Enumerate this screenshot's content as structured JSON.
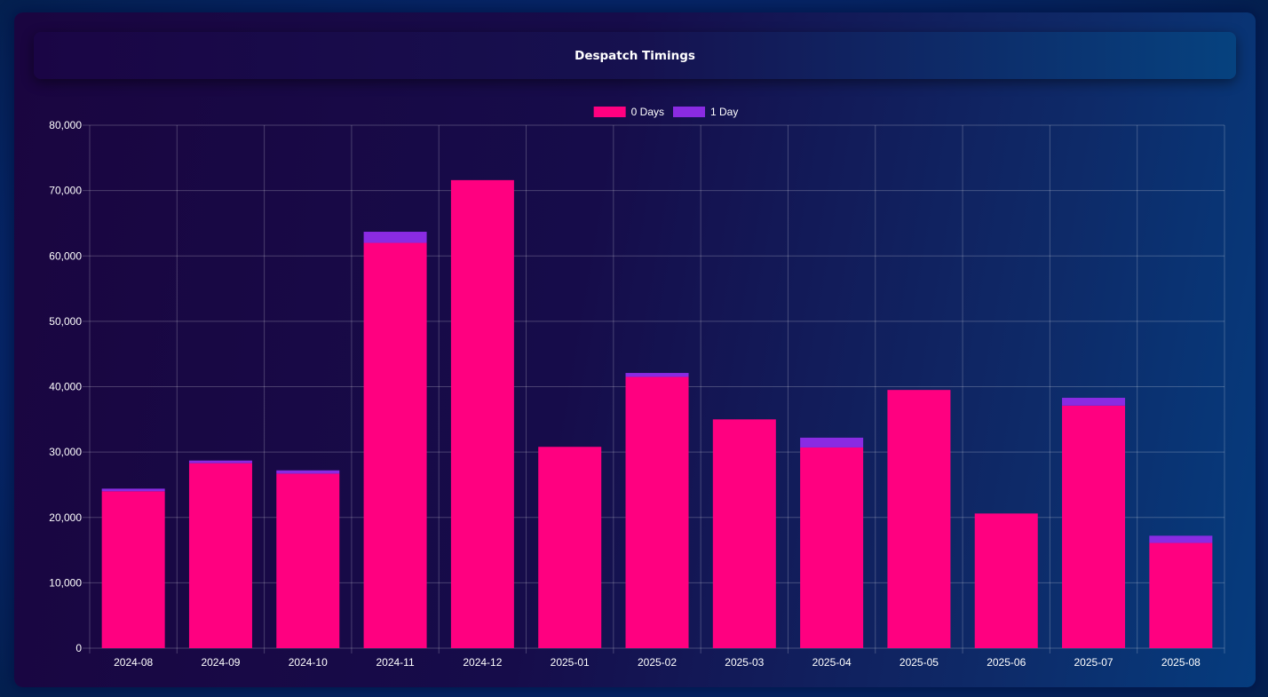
{
  "header": {
    "title": "Despatch Timings"
  },
  "colors": {
    "series_0": "#ff0080",
    "series_1": "#8a2be2",
    "grid": "rgba(255,255,255,0.22)",
    "text": "#ffffff"
  },
  "chart_data": {
    "type": "bar",
    "stacked": true,
    "categories": [
      "2024-08",
      "2024-09",
      "2024-10",
      "2024-11",
      "2024-12",
      "2025-01",
      "2025-02",
      "2025-03",
      "2025-04",
      "2025-05",
      "2025-06",
      "2025-07",
      "2025-08"
    ],
    "series": [
      {
        "name": "0 Days",
        "color": "#ff0080",
        "values": [
          24000,
          28300,
          26700,
          62000,
          71600,
          30800,
          41500,
          35000,
          30700,
          39500,
          20600,
          37100,
          16100
        ]
      },
      {
        "name": "1 Day",
        "color": "#8a2be2",
        "values": [
          400,
          400,
          500,
          1700,
          0,
          0,
          600,
          0,
          1500,
          0,
          0,
          1200,
          1100
        ]
      }
    ],
    "ylim": [
      0,
      80000
    ],
    "yticks": [
      0,
      10000,
      20000,
      30000,
      40000,
      50000,
      60000,
      70000,
      80000
    ],
    "ytick_labels": [
      "0",
      "10,000",
      "20,000",
      "30,000",
      "40,000",
      "50,000",
      "60,000",
      "70,000",
      "80,000"
    ],
    "legend_position": "top-center",
    "grid": true
  }
}
